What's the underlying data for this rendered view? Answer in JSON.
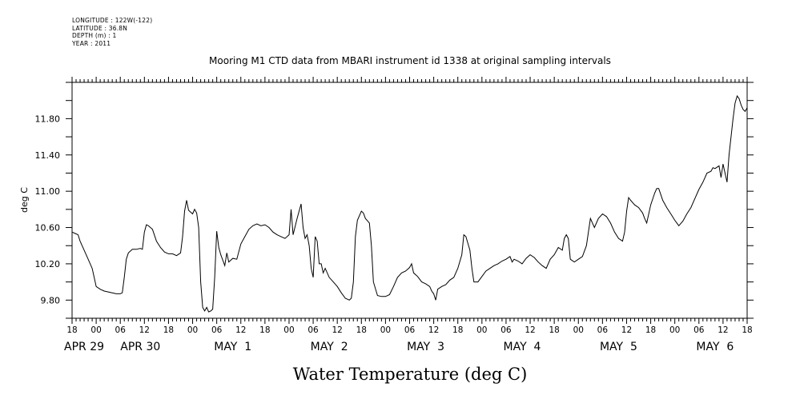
{
  "header_meta": {
    "longitude": "LONGITUDE : 122W(-122)",
    "latitude": "LATITUDE : 36.8N",
    "depth": "DEPTH (m) : 1",
    "year": "YEAR : 2011"
  },
  "chart_data": {
    "type": "line",
    "title": "Mooring M1 CTD data from MBARI instrument id 1338 at original sampling intervals",
    "xlabel": "Water Temperature (deg C)",
    "ylabel": "deg C",
    "ylim": [
      9.6,
      12.2
    ],
    "xlim_hours": [
      0,
      168
    ],
    "y_ticks": [
      9.8,
      10.2,
      10.6,
      11.0,
      11.4,
      11.8
    ],
    "y_tick_labels": [
      "9.80",
      "10.20",
      "10.60",
      "11.00",
      "11.40",
      "11.80"
    ],
    "hour_tick_labels": [
      "18",
      "00",
      "06",
      "12",
      "18",
      "00",
      "06",
      "12",
      "18",
      "00",
      "06",
      "12",
      "18",
      "00",
      "06",
      "12",
      "18",
      "00",
      "06",
      "12",
      "18",
      "00",
      "06",
      "12",
      "18",
      "00",
      "06",
      "12",
      "18"
    ],
    "date_labels": [
      {
        "text": "APR 29",
        "hour": 3
      },
      {
        "text": "APR 30",
        "hour": 17
      },
      {
        "text": "MAY  1",
        "hour": 40
      },
      {
        "text": "MAY  2",
        "hour": 64
      },
      {
        "text": "MAY  3",
        "hour": 88
      },
      {
        "text": "MAY  4",
        "hour": 112
      },
      {
        "text": "MAY  5",
        "hour": 136
      },
      {
        "text": "MAY  6",
        "hour": 160
      }
    ],
    "grid": false,
    "series": [
      {
        "line_color": "#000000",
        "points": [
          [
            0,
            10.55
          ],
          [
            1,
            10.53
          ],
          [
            1.5,
            10.52
          ],
          [
            2,
            10.45
          ],
          [
            3,
            10.35
          ],
          [
            4,
            10.25
          ],
          [
            5,
            10.15
          ],
          [
            5.5,
            10.05
          ],
          [
            6,
            9.95
          ],
          [
            7,
            9.92
          ],
          [
            8,
            9.9
          ],
          [
            9,
            9.89
          ],
          [
            10,
            9.88
          ],
          [
            11,
            9.87
          ],
          [
            12,
            9.87
          ],
          [
            12.5,
            9.88
          ],
          [
            13,
            10.05
          ],
          [
            13.5,
            10.25
          ],
          [
            14,
            10.32
          ],
          [
            15,
            10.36
          ],
          [
            16,
            10.36
          ],
          [
            17,
            10.37
          ],
          [
            17.5,
            10.36
          ],
          [
            18,
            10.55
          ],
          [
            18.5,
            10.63
          ],
          [
            19,
            10.62
          ],
          [
            20,
            10.58
          ],
          [
            21,
            10.45
          ],
          [
            22,
            10.38
          ],
          [
            23,
            10.33
          ],
          [
            24,
            10.31
          ],
          [
            25,
            10.31
          ],
          [
            26,
            10.29
          ],
          [
            27,
            10.32
          ],
          [
            27.5,
            10.5
          ],
          [
            28,
            10.78
          ],
          [
            28.5,
            10.9
          ],
          [
            29,
            10.79
          ],
          [
            30,
            10.75
          ],
          [
            30.5,
            10.8
          ],
          [
            31,
            10.76
          ],
          [
            31.5,
            10.6
          ],
          [
            32,
            10.0
          ],
          [
            32.5,
            9.72
          ],
          [
            33,
            9.68
          ],
          [
            33.5,
            9.72
          ],
          [
            34,
            9.67
          ],
          [
            34.5,
            9.68
          ],
          [
            35,
            9.7
          ],
          [
            35.5,
            10.05
          ],
          [
            36,
            10.56
          ],
          [
            36.5,
            10.38
          ],
          [
            37,
            10.3
          ],
          [
            38,
            10.18
          ],
          [
            38.5,
            10.32
          ],
          [
            39,
            10.22
          ],
          [
            40,
            10.26
          ],
          [
            41,
            10.25
          ],
          [
            42,
            10.42
          ],
          [
            43,
            10.5
          ],
          [
            44,
            10.58
          ],
          [
            45,
            10.62
          ],
          [
            46,
            10.64
          ],
          [
            47,
            10.62
          ],
          [
            48,
            10.63
          ],
          [
            49,
            10.6
          ],
          [
            50,
            10.55
          ],
          [
            51,
            10.52
          ],
          [
            52,
            10.5
          ],
          [
            53,
            10.48
          ],
          [
            54,
            10.52
          ],
          [
            54.5,
            10.8
          ],
          [
            55,
            10.52
          ],
          [
            56,
            10.7
          ],
          [
            57,
            10.86
          ],
          [
            57.5,
            10.6
          ],
          [
            58,
            10.48
          ],
          [
            58.5,
            10.52
          ],
          [
            59,
            10.4
          ],
          [
            59.5,
            10.15
          ],
          [
            60,
            10.05
          ],
          [
            60.5,
            10.5
          ],
          [
            61,
            10.45
          ],
          [
            61.5,
            10.2
          ],
          [
            62,
            10.2
          ],
          [
            62.5,
            10.1
          ],
          [
            63,
            10.15
          ],
          [
            64,
            10.05
          ],
          [
            65,
            10.0
          ],
          [
            66,
            9.95
          ],
          [
            67,
            9.88
          ],
          [
            68,
            9.82
          ],
          [
            69,
            9.8
          ],
          [
            69.5,
            9.82
          ],
          [
            70,
            10.0
          ],
          [
            70.5,
            10.5
          ],
          [
            71,
            10.68
          ],
          [
            72,
            10.78
          ],
          [
            72.5,
            10.76
          ],
          [
            73,
            10.7
          ],
          [
            74,
            10.65
          ],
          [
            74.5,
            10.4
          ],
          [
            75,
            10.0
          ],
          [
            76,
            9.85
          ],
          [
            77,
            9.84
          ],
          [
            78,
            9.84
          ],
          [
            79,
            9.86
          ],
          [
            80,
            9.95
          ],
          [
            81,
            10.05
          ],
          [
            82,
            10.1
          ],
          [
            83,
            10.12
          ],
          [
            84,
            10.16
          ],
          [
            84.5,
            10.2
          ],
          [
            85,
            10.1
          ],
          [
            86,
            10.06
          ],
          [
            87,
            10.0
          ],
          [
            88,
            9.98
          ],
          [
            89,
            9.95
          ],
          [
            89.5,
            9.9
          ],
          [
            90,
            9.87
          ],
          [
            90.5,
            9.8
          ],
          [
            91,
            9.92
          ],
          [
            92,
            9.95
          ],
          [
            93,
            9.97
          ],
          [
            94,
            10.02
          ],
          [
            95,
            10.05
          ],
          [
            96,
            10.15
          ],
          [
            97,
            10.3
          ],
          [
            97.5,
            10.52
          ],
          [
            98,
            10.5
          ],
          [
            99,
            10.35
          ],
          [
            99.5,
            10.15
          ],
          [
            100,
            10.0
          ],
          [
            101,
            10.0
          ],
          [
            102,
            10.06
          ],
          [
            103,
            10.12
          ],
          [
            104,
            10.15
          ],
          [
            105,
            10.18
          ],
          [
            106,
            10.2
          ],
          [
            107,
            10.23
          ],
          [
            108,
            10.25
          ],
          [
            109,
            10.28
          ],
          [
            109.5,
            10.22
          ],
          [
            110,
            10.25
          ],
          [
            111,
            10.23
          ],
          [
            112,
            10.2
          ],
          [
            113,
            10.26
          ],
          [
            114,
            10.3
          ],
          [
            115,
            10.27
          ],
          [
            116,
            10.22
          ],
          [
            117,
            10.18
          ],
          [
            118,
            10.15
          ],
          [
            119,
            10.25
          ],
          [
            120,
            10.3
          ],
          [
            121,
            10.38
          ],
          [
            122,
            10.35
          ],
          [
            122.5,
            10.48
          ],
          [
            123,
            10.52
          ],
          [
            123.5,
            10.48
          ],
          [
            124,
            10.25
          ],
          [
            125,
            10.22
          ],
          [
            126,
            10.25
          ],
          [
            127,
            10.28
          ],
          [
            128,
            10.4
          ],
          [
            128.5,
            10.55
          ],
          [
            129,
            10.7
          ],
          [
            129.5,
            10.65
          ],
          [
            130,
            10.6
          ],
          [
            131,
            10.7
          ],
          [
            132,
            10.75
          ],
          [
            133,
            10.72
          ],
          [
            134,
            10.65
          ],
          [
            135,
            10.55
          ],
          [
            136,
            10.48
          ],
          [
            137,
            10.45
          ],
          [
            137.5,
            10.55
          ],
          [
            138,
            10.78
          ],
          [
            138.5,
            10.93
          ],
          [
            139,
            10.9
          ],
          [
            140,
            10.85
          ],
          [
            141,
            10.82
          ],
          [
            142,
            10.76
          ],
          [
            142.5,
            10.7
          ],
          [
            143,
            10.65
          ],
          [
            144,
            10.85
          ],
          [
            145,
            10.98
          ],
          [
            145.5,
            11.03
          ],
          [
            146,
            11.03
          ],
          [
            147,
            10.9
          ],
          [
            148,
            10.82
          ],
          [
            149,
            10.75
          ],
          [
            150,
            10.68
          ],
          [
            150.5,
            10.65
          ],
          [
            151,
            10.62
          ],
          [
            152,
            10.67
          ],
          [
            153,
            10.75
          ],
          [
            154,
            10.82
          ],
          [
            155,
            10.92
          ],
          [
            156,
            11.02
          ],
          [
            157,
            11.1
          ],
          [
            158,
            11.2
          ],
          [
            159,
            11.22
          ],
          [
            159.5,
            11.26
          ],
          [
            160,
            11.25
          ],
          [
            161,
            11.28
          ],
          [
            161.5,
            11.15
          ],
          [
            162,
            11.3
          ],
          [
            162.5,
            11.2
          ],
          [
            163,
            11.1
          ],
          [
            163.5,
            11.4
          ],
          [
            164,
            11.6
          ],
          [
            164.5,
            11.8
          ],
          [
            165,
            11.97
          ],
          [
            165.5,
            12.05
          ],
          [
            166,
            12.02
          ],
          [
            166.5,
            11.95
          ],
          [
            167,
            11.9
          ],
          [
            167.5,
            11.88
          ],
          [
            168,
            11.92
          ]
        ]
      }
    ]
  }
}
